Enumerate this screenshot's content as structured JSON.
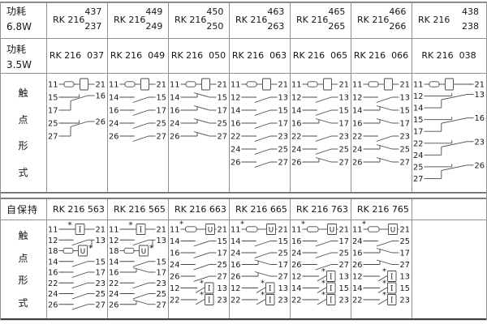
{
  "colors": {
    "grid": "#909090",
    "grid_strong": "#6f6f6f",
    "border_bottom": "#3f3f3f",
    "stroke": "#474747",
    "text": "#161616"
  },
  "left_column": {
    "power_high": {
      "line1": "功耗",
      "line2": "6.8W"
    },
    "power_low": {
      "line1": "功耗",
      "line2": "3.5W"
    },
    "contact_form_top": [
      "触",
      "点",
      "形",
      "式"
    ],
    "latching_label": "自保持",
    "contact_form_bottom": [
      "触",
      "点",
      "形",
      "式"
    ]
  },
  "top_section": {
    "model_prefix": "RK 216",
    "dual_models": [
      {
        "upper": "437",
        "lower": "237"
      },
      {
        "upper": "449",
        "lower": "249"
      },
      {
        "upper": "450",
        "lower": "250"
      },
      {
        "upper": "463",
        "lower": "263"
      },
      {
        "upper": "465",
        "lower": "265"
      },
      {
        "upper": "466",
        "lower": "266"
      },
      {
        "upper": "438",
        "lower": "238"
      }
    ],
    "single_models": [
      "RK 216  037",
      "RK 216  049",
      "RK 216  050",
      "RK 216  063",
      "RK 216  065",
      "RK 216  066",
      "RK 216  038"
    ],
    "diagrams": [
      [
        {
          "t": "coil",
          "l": "11",
          "r": "21"
        },
        {
          "t": "co",
          "a": "15",
          "r": "16",
          "b": "17"
        },
        {
          "t": "co",
          "a": "25",
          "r": "26",
          "b": "27"
        }
      ],
      [
        {
          "t": "coil",
          "l": "11",
          "r": "21"
        },
        {
          "t": "no",
          "l": "14",
          "r": "15"
        },
        {
          "t": "no",
          "l": "16",
          "r": "17"
        },
        {
          "t": "no",
          "l": "24",
          "r": "25"
        },
        {
          "t": "no",
          "l": "26",
          "r": "27"
        }
      ],
      [
        {
          "t": "coil",
          "l": "11",
          "r": "21"
        },
        {
          "t": "nc",
          "l": "14",
          "r": "15"
        },
        {
          "t": "nc",
          "l": "16",
          "r": "17"
        },
        {
          "t": "nc",
          "l": "24",
          "r": "25"
        },
        {
          "t": "nc",
          "l": "26",
          "r": "27"
        }
      ],
      [
        {
          "t": "coil",
          "l": "11",
          "r": "21"
        },
        {
          "t": "no",
          "l": "12",
          "r": "13"
        },
        {
          "t": "no",
          "l": "14",
          "r": "15"
        },
        {
          "t": "no",
          "l": "16",
          "r": "17"
        },
        {
          "t": "no",
          "l": "22",
          "r": "23"
        },
        {
          "t": "no",
          "l": "24",
          "r": "25"
        },
        {
          "t": "no",
          "l": "26",
          "r": "27"
        }
      ],
      [
        {
          "t": "coil",
          "l": "11",
          "r": "21"
        },
        {
          "t": "no",
          "l": "12",
          "r": "13"
        },
        {
          "t": "no",
          "l": "14",
          "r": "15"
        },
        {
          "t": "nc",
          "l": "16",
          "r": "17"
        },
        {
          "t": "no",
          "l": "22",
          "r": "23"
        },
        {
          "t": "no",
          "l": "24",
          "r": "25"
        },
        {
          "t": "nc",
          "l": "26",
          "r": "27"
        }
      ],
      [
        {
          "t": "coil",
          "l": "11",
          "r": "21"
        },
        {
          "t": "no",
          "l": "12",
          "r": "13"
        },
        {
          "t": "nc",
          "l": "14",
          "r": "15"
        },
        {
          "t": "nc",
          "l": "16",
          "r": "17"
        },
        {
          "t": "no",
          "l": "22",
          "r": "23"
        },
        {
          "t": "nc",
          "l": "24",
          "r": "25"
        },
        {
          "t": "nc",
          "l": "26",
          "r": "27"
        }
      ],
      [
        {
          "t": "coil",
          "l": "11",
          "r": "21"
        },
        {
          "t": "co",
          "a": "12",
          "r": "13",
          "b": "14"
        },
        {
          "t": "co",
          "a": "15",
          "r": "16",
          "b": "17"
        },
        {
          "t": "co",
          "a": "22",
          "r": "23",
          "b": "24"
        },
        {
          "t": "co",
          "a": "25",
          "r": "26",
          "b": "27"
        }
      ]
    ]
  },
  "bottom_section": {
    "models": [
      "RK 216 563",
      "RK 216 565",
      "RK 216 663",
      "RK 216 665",
      "RK 216 763",
      "RK 216 765",
      ""
    ],
    "diagrams": [
      [
        {
          "t": "coil_i",
          "l": "11",
          "r": "21"
        },
        {
          "t": "latch_no",
          "l": "12",
          "r": "13"
        },
        {
          "t": "u18",
          "l": "18"
        },
        {
          "t": "no",
          "l": "14",
          "r": "15"
        },
        {
          "t": "no",
          "l": "16",
          "r": "17"
        },
        {
          "t": "no",
          "l": "22",
          "r": "23"
        },
        {
          "t": "no",
          "l": "24",
          "r": "25"
        },
        {
          "t": "no",
          "l": "26",
          "r": "27"
        }
      ],
      [
        {
          "t": "coil_i",
          "l": "11",
          "r": "21"
        },
        {
          "t": "latch_no",
          "l": "12",
          "r": "13"
        },
        {
          "t": "u18",
          "l": "18"
        },
        {
          "t": "no",
          "l": "14",
          "r": "15"
        },
        {
          "t": "nc",
          "l": "16",
          "r": "17"
        },
        {
          "t": "no",
          "l": "22",
          "r": "23"
        },
        {
          "t": "no",
          "l": "24",
          "r": "25"
        },
        {
          "t": "nc",
          "l": "26",
          "r": "27"
        }
      ],
      [
        {
          "t": "coil_u",
          "l": "11",
          "r": "21"
        },
        {
          "t": "no",
          "l": "14",
          "r": "15"
        },
        {
          "t": "no",
          "l": "16",
          "r": "17"
        },
        {
          "t": "no",
          "l": "24",
          "r": "25"
        },
        {
          "t": "no",
          "l": "26",
          "r": "27"
        },
        {
          "t": "i_no",
          "l": "12",
          "r": "13"
        },
        {
          "t": "i_no",
          "l": "22",
          "r": "23"
        }
      ],
      [
        {
          "t": "coil_u",
          "l": "11",
          "r": "21"
        },
        {
          "t": "no",
          "l": "14",
          "r": "15"
        },
        {
          "t": "no",
          "l": "24",
          "r": "25"
        },
        {
          "t": "nc",
          "l": "16",
          "r": "17"
        },
        {
          "t": "nc",
          "l": "26",
          "r": "27"
        },
        {
          "t": "i_no",
          "l": "12",
          "r": "13"
        },
        {
          "t": "i_no",
          "l": "22",
          "r": "23"
        }
      ],
      [
        {
          "t": "coil_u",
          "l": "11",
          "r": "21"
        },
        {
          "t": "no",
          "l": "16",
          "r": "17"
        },
        {
          "t": "no",
          "l": "24",
          "r": "25"
        },
        {
          "t": "no",
          "l": "26",
          "r": "27"
        },
        {
          "t": "i_no",
          "l": "12",
          "r": "13"
        },
        {
          "t": "i_no",
          "l": "14",
          "r": "15"
        },
        {
          "t": "i_no",
          "l": "22",
          "r": "23"
        }
      ],
      [
        {
          "t": "coil_u",
          "l": "11",
          "r": "21"
        },
        {
          "t": "no",
          "l": "24",
          "r": "25"
        },
        {
          "t": "nc",
          "l": "16",
          "r": "17"
        },
        {
          "t": "nc",
          "l": "26",
          "r": "27"
        },
        {
          "t": "i_no",
          "l": "12",
          "r": "13"
        },
        {
          "t": "i_no",
          "l": "14",
          "r": "15"
        },
        {
          "t": "i_no",
          "l": "22",
          "r": "23"
        }
      ],
      []
    ]
  }
}
